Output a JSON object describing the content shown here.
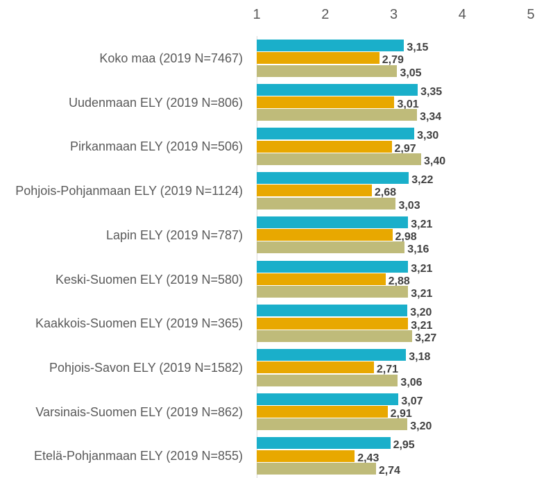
{
  "chart_data": {
    "type": "bar",
    "orientation": "horizontal",
    "categories": [
      "Koko maa (2019 N=7467)",
      "Uudenmaan ELY (2019 N=806)",
      "Pirkanmaan ELY (2019 N=506)",
      "Pohjois-Pohjanmaan ELY (2019 N=1124)",
      "Lapin ELY (2019 N=787)",
      "Keski-Suomen ELY (2019 N=580)",
      "Kaakkois-Suomen ELY (2019 N=365)",
      "Pohjois-Savon ELY (2019 N=1582)",
      "Varsinais-Suomen ELY (2019 N=862)",
      "Etelä-Pohjanmaan ELY (2019 N=855)"
    ],
    "series": [
      {
        "color": "#1aafca",
        "values": [
          3.15,
          3.35,
          3.3,
          3.22,
          3.21,
          3.21,
          3.2,
          3.18,
          3.07,
          2.95
        ],
        "value_labels": [
          "3,15",
          "3,35",
          "3,30",
          "3,22",
          "3,21",
          "3,21",
          "3,20",
          "3,18",
          "3,07",
          "2,95"
        ]
      },
      {
        "color": "#e8a800",
        "values": [
          2.79,
          3.01,
          2.97,
          2.68,
          2.98,
          2.88,
          3.21,
          2.71,
          2.91,
          2.43
        ],
        "value_labels": [
          "2,79",
          "3,01",
          "2,97",
          "2,68",
          "2,98",
          "2,88",
          "3,21",
          "2,71",
          "2,91",
          "2,43"
        ]
      },
      {
        "color": "#bfbb7a",
        "values": [
          3.05,
          3.34,
          3.4,
          3.03,
          3.16,
          3.21,
          3.27,
          3.06,
          3.2,
          2.74
        ],
        "value_labels": [
          "3,05",
          "3,34",
          "3,40",
          "3,03",
          "3,16",
          "3,21",
          "3,27",
          "3,06",
          "3,20",
          "2,74"
        ]
      }
    ],
    "xlim": [
      1,
      5
    ],
    "xticks": [
      1,
      2,
      3,
      4,
      5
    ],
    "grid": false
  }
}
